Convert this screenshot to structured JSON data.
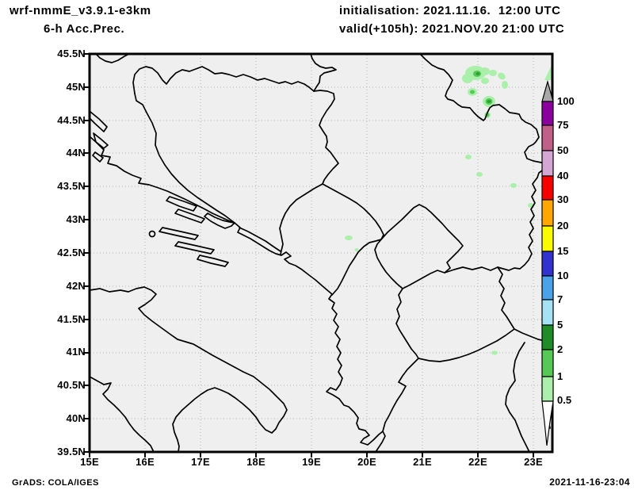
{
  "header": {
    "model_name": "wrf-nmmE_v3.9.1-e3km",
    "product_name": "6-h Acc.Prec.",
    "initialisation": "initialisation: 2021.11.16.  12:00 UTC",
    "valid": "valid(+105h): 2021.NOV.20 21:00 UTC"
  },
  "footer": {
    "credit": "GrADS: COLA/IGES",
    "created": "2021-11-16-23:04"
  },
  "axes": {
    "lat_labels": [
      "45.5N",
      "45N",
      "44.5N",
      "44N",
      "43.5N",
      "43N",
      "42.5N",
      "42N",
      "41.5N",
      "41N",
      "40.5N",
      "40N",
      "39.5N"
    ],
    "lon_labels": [
      "15E",
      "16E",
      "17E",
      "18E",
      "19E",
      "20E",
      "21E",
      "22E",
      "23E"
    ]
  },
  "colorbar": {
    "labels": [
      "100",
      "75",
      "50",
      "40",
      "30",
      "20",
      "15",
      "10",
      "7",
      "5",
      "2",
      "1",
      "0.5"
    ],
    "colors": {
      "overflow": "#a8a8a8",
      "p100": "#8c00a0",
      "p75": "#c06088",
      "p50": "#d4a6d4",
      "p40": "#f80000",
      "p30": "#ffa600",
      "p20": "#fbfb00",
      "p15": "#3232d0",
      "p10": "#4aa2e8",
      "p7": "#a6e2f6",
      "p5": "#1f8c28",
      "p2": "#55c855",
      "p1": "#aaf0aa",
      "underflow": "#ffffff"
    }
  },
  "map": {
    "colors": {
      "background": "#efefef",
      "line": "#000000",
      "gridline": "#b5b5b5",
      "precip_light": "#aaf0aa",
      "precip_medium": "#55c855",
      "precip_dark": "#2f9e36"
    }
  }
}
